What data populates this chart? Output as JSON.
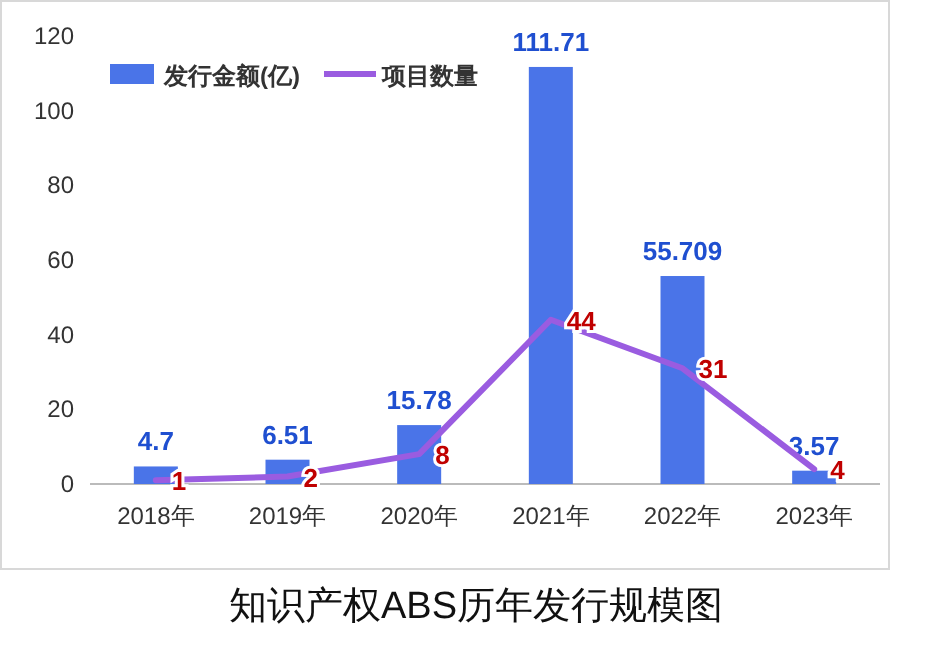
{
  "chart_data": {
    "type": "bar",
    "title": "知识产权ABS历年发行规模图",
    "categories": [
      "2018年",
      "2019年",
      "2020年",
      "2021年",
      "2022年",
      "2023年"
    ],
    "series": [
      {
        "name": "发行金额(亿)",
        "color": "#4a74e8",
        "values": [
          4.7,
          6.51,
          15.78,
          111.71,
          55.709,
          3.57
        ]
      },
      {
        "name": "项目数量",
        "type": "line",
        "color": "#9a5ce0",
        "values": [
          1,
          2,
          8,
          44,
          31,
          4
        ]
      }
    ],
    "ylim": [
      0,
      120
    ],
    "yticks": [
      0,
      20,
      40,
      60,
      80,
      100,
      120
    ],
    "data_labels": true,
    "legend": "top left",
    "grid": false
  }
}
